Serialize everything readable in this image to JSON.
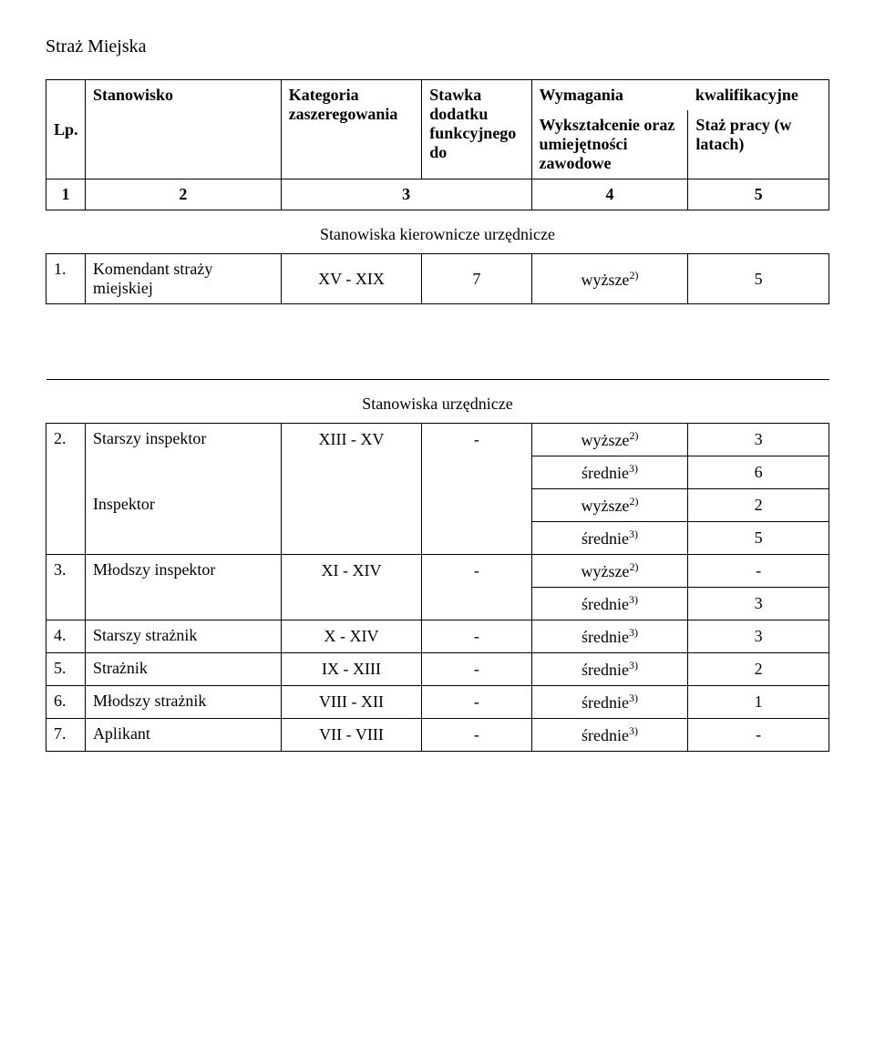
{
  "title": "Straż Miejska",
  "headers": {
    "lp": "Lp.",
    "stanowisko": "Stanowisko",
    "kategoria": "Kategoria zaszeregowania",
    "stawka": "Stawka dodatku funkcyjnego do",
    "wymagania": "Wymagania",
    "kwalifikacyjne": "kwalifikacyjne",
    "wyksztalcenie": "Wykształcenie oraz umiejętności zawodowe",
    "staz": "Staż pracy (w latach)"
  },
  "numRow": {
    "c1": "1",
    "c2": "2",
    "c3": "3",
    "c4": "4",
    "c5": "5"
  },
  "section1": "Stanowiska kierownicze urzędnicze",
  "section2": "Stanowiska urzędnicze",
  "rows": {
    "r1": {
      "lp": "1.",
      "name": "Komendant straży miejskiej",
      "cat": "XV - XIX",
      "rate": "7",
      "edu": "wyższe",
      "sup": "2)",
      "exp": "5"
    },
    "r2": {
      "lp": "2.",
      "name": "Starszy inspektor",
      "cat": "XIII - XV",
      "rate": "-",
      "edu": "wyższe",
      "sup": "2)",
      "exp": "3"
    },
    "r2b": {
      "edu": "średnie",
      "sup": "3)",
      "exp": "6"
    },
    "r2c": {
      "name": "Inspektor",
      "edu": "wyższe",
      "sup": "2)",
      "exp": "2"
    },
    "r2d": {
      "edu": "średnie",
      "sup": "3)",
      "exp": "5"
    },
    "r3": {
      "lp": "3.",
      "name": "Młodszy inspektor",
      "cat": "XI - XIV",
      "rate": "-",
      "edu": "wyższe",
      "sup": "2)",
      "exp": "-"
    },
    "r3b": {
      "edu": "średnie",
      "sup": "3)",
      "exp": "3"
    },
    "r4": {
      "lp": "4.",
      "name": "Starszy strażnik",
      "cat": "X - XIV",
      "rate": "-",
      "edu": "średnie",
      "sup": "3)",
      "exp": "3"
    },
    "r5": {
      "lp": "5.",
      "name": "Strażnik",
      "cat": "IX - XIII",
      "rate": "-",
      "edu": "średnie",
      "sup": "3)",
      "exp": "2"
    },
    "r6": {
      "lp": "6.",
      "name": "Młodszy strażnik",
      "cat": "VIII - XII",
      "rate": "-",
      "edu": "średnie",
      "sup": "3)",
      "exp": "1"
    },
    "r7": {
      "lp": "7.",
      "name": "Aplikant",
      "cat": "VII - VIII",
      "rate": "-",
      "edu": "średnie",
      "sup": "3)",
      "exp": "-"
    }
  }
}
